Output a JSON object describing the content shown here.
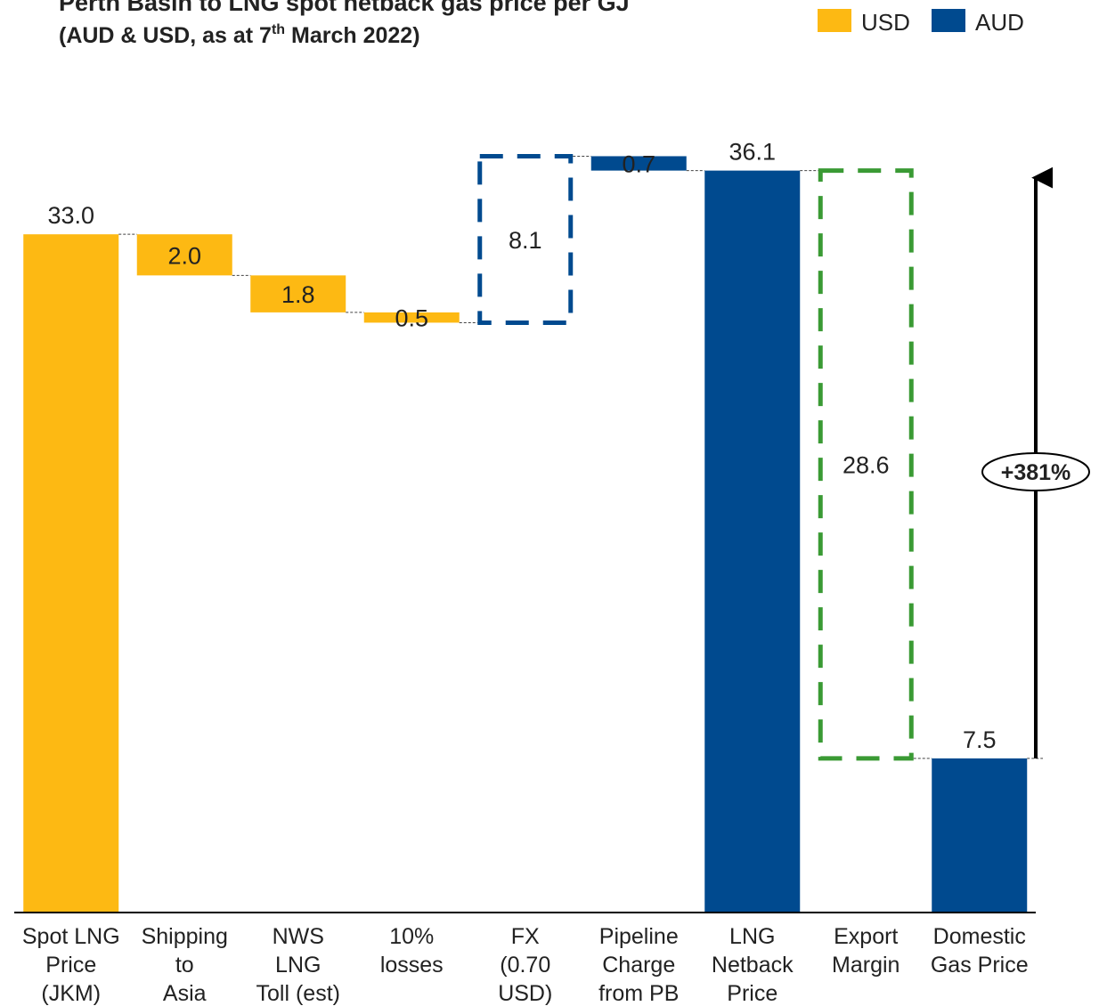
{
  "chart_data": {
    "type": "waterfall",
    "title": "Perth Basin to LNG spot netback gas price per GJ",
    "subtitle_parts": [
      "(AUD & USD, as at 7",
      "th",
      " March 2022)"
    ],
    "categories": [
      [
        "Spot LNG",
        "Price",
        "(JKM)"
      ],
      [
        "Shipping",
        "to",
        "Asia"
      ],
      [
        "NWS",
        "LNG",
        "Toll (est)"
      ],
      [
        "10%",
        "losses"
      ],
      [
        "FX",
        "(0.70",
        "USD)"
      ],
      [
        "Pipeline",
        "Charge",
        "from PB"
      ],
      [
        "LNG",
        "Netback",
        "Price"
      ],
      [
        "Export",
        "Margin"
      ],
      [
        "Domestic",
        "Gas Price"
      ]
    ],
    "values": [
      33.0,
      2.0,
      1.8,
      0.5,
      8.1,
      0.7,
      36.1,
      28.6,
      7.5
    ],
    "value_labels": [
      "33.0",
      "2.0",
      "1.8",
      "0.5",
      "8.1",
      "0.7",
      "36.1",
      "28.6",
      "7.5"
    ],
    "measures": [
      "total",
      "decrease",
      "decrease",
      "decrease",
      "increase",
      "decrease",
      "total",
      "decrease",
      "total"
    ],
    "colors": [
      "#FDB913",
      "#FDB913",
      "#FDB913",
      "#FDB913",
      "#004A8F",
      "#004A8F",
      "#004A8F",
      "#3A9A34",
      "#004A8F"
    ],
    "dashed": [
      false,
      false,
      false,
      false,
      true,
      false,
      false,
      true,
      false
    ],
    "legend": [
      {
        "name": "USD",
        "color": "#FDB913"
      },
      {
        "name": "AUD",
        "color": "#004A8F"
      }
    ],
    "annotation": "+381%",
    "ylim": [
      0,
      44.4
    ]
  }
}
